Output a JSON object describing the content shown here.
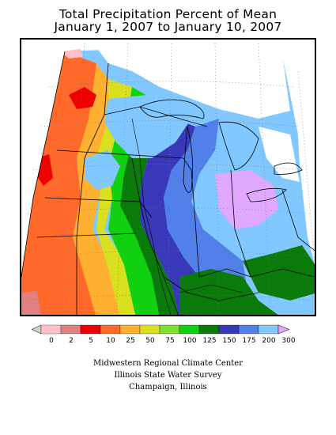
{
  "title": {
    "line1": "Total Precipitation Percent of Mean",
    "line2": "January 1, 2007 to January 10, 2007"
  },
  "legend": {
    "ticks": [
      "0",
      "2",
      "5",
      "10",
      "25",
      "50",
      "75",
      "100",
      "125",
      "150",
      "175",
      "200",
      "300"
    ],
    "colors": [
      "#ffc0cb",
      "#e08080",
      "#ee0000",
      "#ff6a2a",
      "#ffb030",
      "#d8e020",
      "#80e030",
      "#10d010",
      "#0a7a0a",
      "#3838b8",
      "#5080e8",
      "#80c8ff",
      "#e0a8ff"
    ],
    "under_color": "#d0d0d0",
    "over_color": "#e0a8ff"
  },
  "credits": {
    "line1": "Midwestern Regional Climate Center",
    "line2": "Illinois State Water Survey",
    "line3": "Champaign, Illinois"
  }
}
